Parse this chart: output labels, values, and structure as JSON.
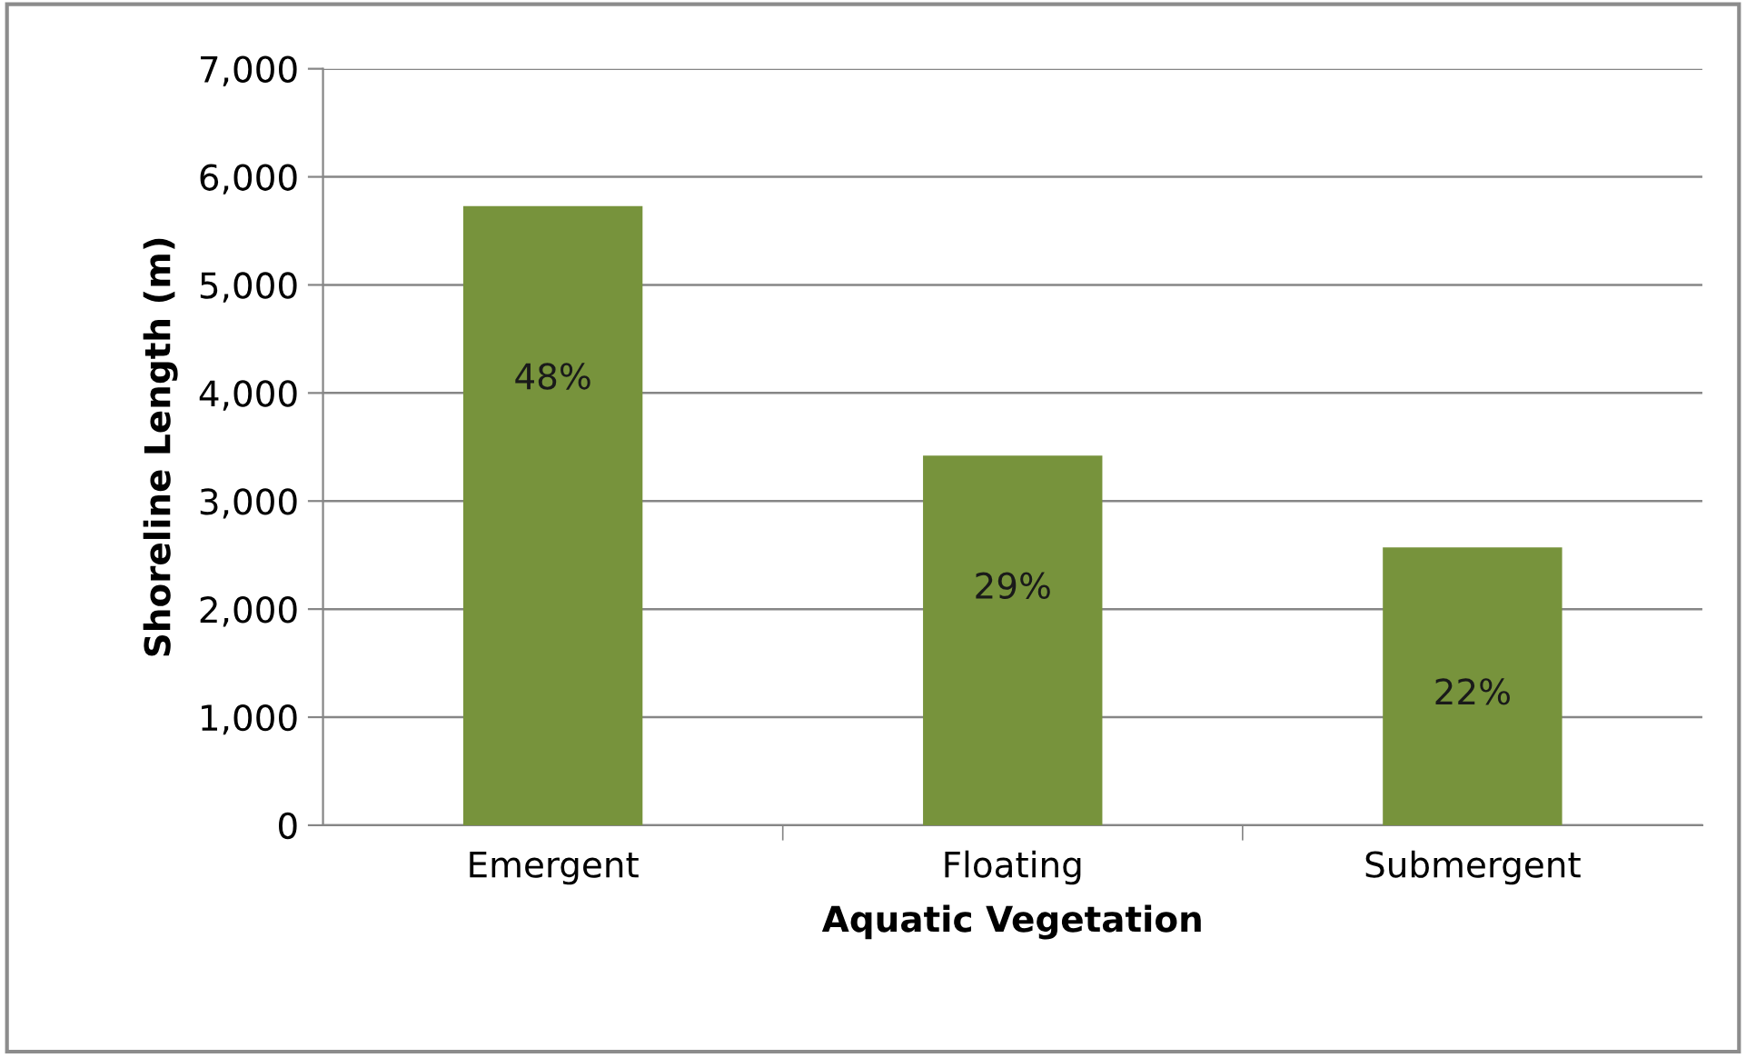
{
  "chart_data": {
    "type": "bar",
    "xlabel": "Aquatic Vegetation",
    "ylabel": "Shoreline Length (m)",
    "categories": [
      "Emergent",
      "Floating",
      "Submergent"
    ],
    "values": [
      5730,
      3420,
      2570
    ],
    "annotations": [
      "48%",
      "29%",
      "22%"
    ],
    "color": "#77933c",
    "ylim": [
      0,
      7000
    ],
    "yticks": [
      {
        "value": 0,
        "label": "0"
      },
      {
        "value": 1000,
        "label": "1,000"
      },
      {
        "value": 2000,
        "label": "2,000"
      },
      {
        "value": 3000,
        "label": "3,000"
      },
      {
        "value": 4000,
        "label": "4,000"
      },
      {
        "value": 5000,
        "label": "5,000"
      },
      {
        "value": 6000,
        "label": "6,000"
      },
      {
        "value": 7000,
        "label": "7,000"
      }
    ],
    "grid": "y",
    "legend": false
  }
}
